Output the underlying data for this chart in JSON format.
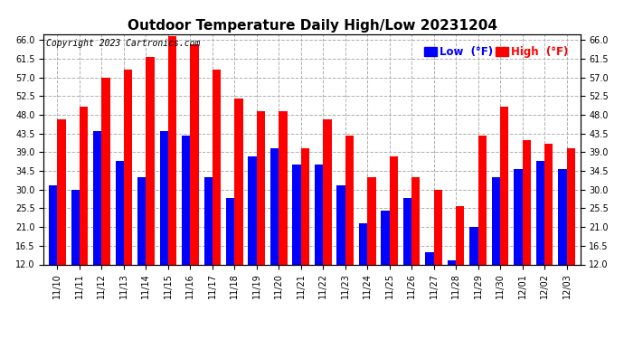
{
  "title": "Outdoor Temperature Daily High/Low 20231204",
  "copyright": "Copyright 2023 Cartronics.com",
  "legend_low_label": "Low  (°F)",
  "legend_high_label": "High  (°F)",
  "dates": [
    "11/10",
    "11/11",
    "11/12",
    "11/13",
    "11/14",
    "11/15",
    "11/16",
    "11/17",
    "11/18",
    "11/19",
    "11/20",
    "11/21",
    "11/22",
    "11/23",
    "11/24",
    "11/25",
    "11/26",
    "11/27",
    "11/28",
    "11/29",
    "11/30",
    "12/01",
    "12/02",
    "12/03"
  ],
  "highs": [
    47,
    50,
    57,
    59,
    62,
    67,
    65,
    59,
    52,
    49,
    49,
    40,
    47,
    43,
    33,
    38,
    33,
    30,
    26,
    43,
    50,
    42,
    41,
    40
  ],
  "lows": [
    31,
    30,
    44,
    37,
    33,
    44,
    43,
    33,
    28,
    38,
    40,
    36,
    36,
    31,
    22,
    25,
    28,
    15,
    13,
    21,
    33,
    35,
    37,
    35
  ],
  "ylim_min": 12.0,
  "ylim_max": 67.5,
  "yticks": [
    12.0,
    16.5,
    21.0,
    25.5,
    30.0,
    34.5,
    39.0,
    43.5,
    48.0,
    52.5,
    57.0,
    61.5,
    66.0
  ],
  "bar_width": 0.38,
  "low_color": "#0000ff",
  "high_color": "#ff0000",
  "bg_color": "#ffffff",
  "grid_color": "#b0b0b0",
  "title_fontsize": 11,
  "copyright_fontsize": 7,
  "tick_fontsize": 7,
  "legend_fontsize": 8.5
}
